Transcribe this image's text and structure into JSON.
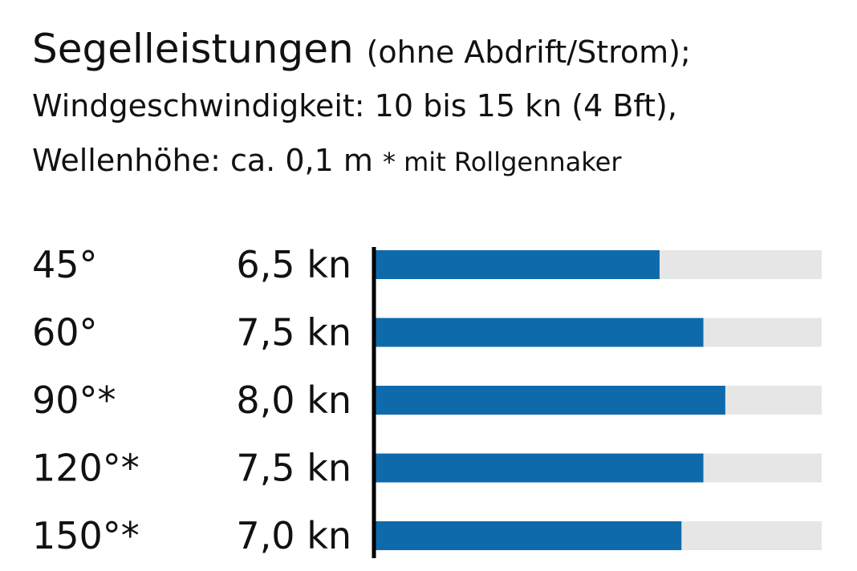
{
  "header": {
    "title_main": "Segelleistungen",
    "title_paren": "(ohne Abdrift/Strom);",
    "line2": "Windgeschwindigkeit: 10 bis 15 kn (4 Bft),",
    "line3_main": "Wellenhöhe: ca. 0,1 m",
    "line3_note": "* mit Rollgennaker"
  },
  "colors": {
    "bar": "#0f6aab",
    "track": "#e6e6e6",
    "axis": "#000000"
  },
  "chart_data": {
    "type": "bar",
    "orientation": "horizontal",
    "categories": [
      "45°",
      "60°",
      "90°*",
      "120°*",
      "150°*"
    ],
    "values": [
      6.5,
      7.5,
      8.0,
      7.5,
      7.0
    ],
    "value_labels": [
      "6,5 kn",
      "7,5 kn",
      "8,0 kn",
      "7,5 kn",
      "7,0 kn"
    ],
    "unit": "kn",
    "xlim": [
      0,
      10.2
    ],
    "grid": false,
    "legend": "none"
  }
}
